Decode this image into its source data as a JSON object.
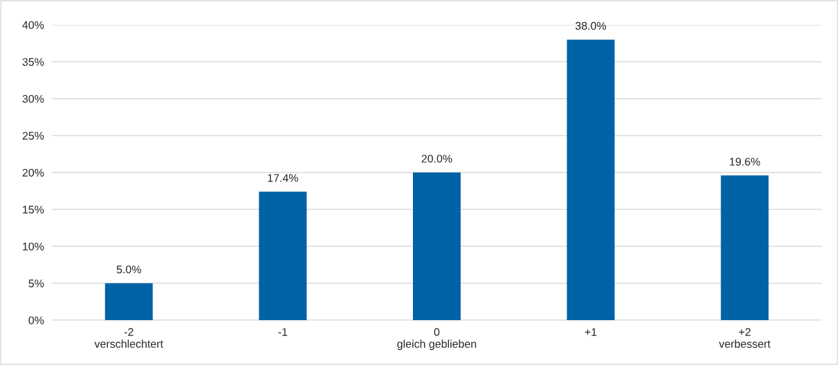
{
  "chart_data": {
    "type": "bar",
    "categories": [
      "-2\nverschlechtert",
      "-1",
      "0\ngleich geblieben",
      "+1",
      "+2\nverbessert"
    ],
    "values": [
      5.0,
      17.4,
      20.0,
      38.0,
      19.6
    ],
    "value_labels": [
      "5.0%",
      "17.4%",
      "20.0%",
      "38.0%",
      "19.6%"
    ],
    "color": "#0063a6",
    "ylim": [
      0,
      40
    ],
    "yticks": [
      {
        "value": 0,
        "label": "0%"
      },
      {
        "value": 5,
        "label": "5%"
      },
      {
        "value": 10,
        "label": "10%"
      },
      {
        "value": 15,
        "label": "15%"
      },
      {
        "value": 20,
        "label": "20%"
      },
      {
        "value": 25,
        "label": "25%"
      },
      {
        "value": 30,
        "label": "30%"
      },
      {
        "value": 35,
        "label": "35%"
      },
      {
        "value": 40,
        "label": "40%"
      }
    ],
    "grid": "y",
    "legend": false
  }
}
